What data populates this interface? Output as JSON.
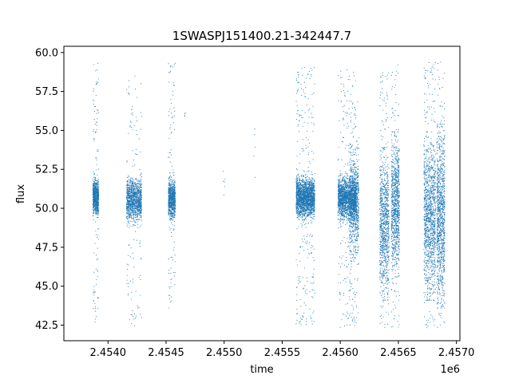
{
  "chart_data": {
    "type": "scatter",
    "title": "1SWASPJ151400.21-342447.7",
    "xlabel": "time",
    "ylabel": "flux",
    "x_offset_label": "1e6",
    "xlim": [
      2453620,
      2457030
    ],
    "ylim": [
      41.5,
      60.4
    ],
    "xticks": [
      2454000,
      2454500,
      2455000,
      2455500,
      2456000,
      2456500,
      2457000
    ],
    "xtick_labels": [
      "2.4540",
      "2.4545",
      "2.4550",
      "2.4555",
      "2.4560",
      "2.4565",
      "2.4570"
    ],
    "yticks": [
      42.5,
      45.0,
      47.5,
      50.0,
      52.5,
      55.0,
      57.5,
      60.0
    ],
    "ytick_labels": [
      "42.5",
      "45.0",
      "47.5",
      "50.0",
      "52.5",
      "55.0",
      "57.5",
      "60.0"
    ],
    "grid": false,
    "marker_color": "#1f77b4",
    "point_clusters": [
      {
        "x_range": [
          2453870,
          2453920
        ],
        "y_core": [
          49.6,
          51.8
        ],
        "y_extent": [
          42.6,
          59.4
        ],
        "n": 900
      },
      {
        "x_range": [
          2454160,
          2454290
        ],
        "y_core": [
          49.2,
          51.9
        ],
        "y_extent": [
          42.3,
          58.7
        ],
        "n": 1300
      },
      {
        "x_range": [
          2454520,
          2454580
        ],
        "y_core": [
          49.3,
          51.9
        ],
        "y_extent": [
          43.6,
          59.4
        ],
        "n": 900
      },
      {
        "x_range": [
          2454650,
          2454670
        ],
        "y_core": [
          55.6,
          56.4
        ],
        "y_extent": [
          55.6,
          56.4
        ],
        "n": 4
      },
      {
        "x_range": [
          2454990,
          2455010
        ],
        "y_core": [
          51.0,
          53.0
        ],
        "y_extent": [
          50.8,
          53.2
        ],
        "n": 6
      },
      {
        "x_range": [
          2455250,
          2455270
        ],
        "y_core": [
          52.0,
          55.5
        ],
        "y_extent": [
          52.0,
          55.8
        ],
        "n": 6
      },
      {
        "x_range": [
          2455620,
          2455780
        ],
        "y_core": [
          49.4,
          52.0
        ],
        "y_extent": [
          42.5,
          59.1
        ],
        "n": 2200
      },
      {
        "x_range": [
          2455980,
          2456140
        ],
        "y_core": [
          49.3,
          52.0
        ],
        "y_extent": [
          42.3,
          58.9
        ],
        "n": 2000
      },
      {
        "x_range": [
          2456080,
          2456160
        ],
        "y_core": [
          47.0,
          53.5
        ],
        "y_extent": [
          42.5,
          57.0
        ],
        "n": 800
      },
      {
        "x_range": [
          2456340,
          2456420
        ],
        "y_core": [
          44.5,
          53.5
        ],
        "y_extent": [
          42.3,
          58.8
        ],
        "n": 1000
      },
      {
        "x_range": [
          2456440,
          2456510
        ],
        "y_core": [
          46.0,
          54.5
        ],
        "y_extent": [
          42.3,
          59.3
        ],
        "n": 1000
      },
      {
        "x_range": [
          2456720,
          2456820
        ],
        "y_core": [
          44.5,
          54.5
        ],
        "y_extent": [
          42.3,
          59.4
        ],
        "n": 1300
      },
      {
        "x_range": [
          2456830,
          2456900
        ],
        "y_core": [
          44.0,
          55.0
        ],
        "y_extent": [
          42.3,
          59.4
        ],
        "n": 1100
      }
    ]
  }
}
